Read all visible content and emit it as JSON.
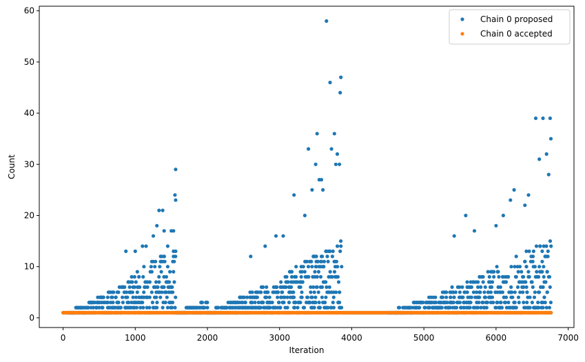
{
  "chart_data": {
    "type": "scatter",
    "title": "",
    "xlabel": "Iteration",
    "ylabel": "Count",
    "xlim": [
      -330,
      7080
    ],
    "ylim": [
      -1.9,
      60.9
    ],
    "xticks": [
      0,
      1000,
      2000,
      3000,
      4000,
      5000,
      6000,
      7000
    ],
    "yticks": [
      0,
      10,
      20,
      30,
      40,
      50,
      60
    ],
    "grid": false,
    "legend_position": "top-right",
    "series": [
      {
        "name": "Chain 0 proposed",
        "color": "#1f77b4",
        "segments": [
          {
            "x_start": 0,
            "x_end": 80,
            "y_min": 1,
            "y_max": 1
          },
          {
            "x_start": 80,
            "x_end": 1560,
            "y_min": 1,
            "y_max": 14
          },
          {
            "x_start": 1560,
            "x_end": 2000,
            "y_min": 1,
            "y_max": 3
          },
          {
            "x_start": 2000,
            "x_end": 3860,
            "y_min": 1,
            "y_max": 15
          },
          {
            "x_start": 3860,
            "x_end": 4500,
            "y_min": 1,
            "y_max": 1
          },
          {
            "x_start": 4500,
            "x_end": 6760,
            "y_min": 1,
            "y_max": 15
          }
        ],
        "outliers": [
          [
            870,
            13
          ],
          [
            1000,
            13
          ],
          [
            1100,
            14
          ],
          [
            1150,
            14
          ],
          [
            1250,
            16
          ],
          [
            1300,
            18
          ],
          [
            1330,
            21
          ],
          [
            1380,
            21
          ],
          [
            1400,
            17
          ],
          [
            1450,
            14
          ],
          [
            1500,
            17
          ],
          [
            1530,
            17
          ],
          [
            1550,
            24
          ],
          [
            1560,
            23
          ],
          [
            1560,
            29
          ],
          [
            2600,
            12
          ],
          [
            2800,
            14
          ],
          [
            2950,
            16
          ],
          [
            3050,
            16
          ],
          [
            3200,
            24
          ],
          [
            3350,
            20
          ],
          [
            3400,
            33
          ],
          [
            3450,
            25
          ],
          [
            3500,
            30
          ],
          [
            3520,
            36
          ],
          [
            3550,
            27
          ],
          [
            3580,
            27
          ],
          [
            3600,
            25
          ],
          [
            3650,
            58
          ],
          [
            3700,
            46
          ],
          [
            3720,
            33
          ],
          [
            3760,
            36
          ],
          [
            3780,
            30
          ],
          [
            3800,
            32
          ],
          [
            3830,
            30
          ],
          [
            3840,
            44
          ],
          [
            3850,
            47
          ],
          [
            5420,
            16
          ],
          [
            5580,
            20
          ],
          [
            5700,
            17
          ],
          [
            6000,
            18
          ],
          [
            6100,
            20
          ],
          [
            6200,
            23
          ],
          [
            6250,
            25
          ],
          [
            6400,
            22
          ],
          [
            6450,
            24
          ],
          [
            6550,
            39
          ],
          [
            6600,
            31
          ],
          [
            6650,
            39
          ],
          [
            6700,
            32
          ],
          [
            6730,
            28
          ],
          [
            6750,
            39
          ],
          [
            6760,
            35
          ]
        ]
      },
      {
        "name": "Chain 0 accepted",
        "color": "#ff7f0e",
        "segments": [
          {
            "x_start": 0,
            "x_end": 6760,
            "y_min": 1,
            "y_max": 1
          }
        ],
        "outliers": []
      }
    ]
  }
}
